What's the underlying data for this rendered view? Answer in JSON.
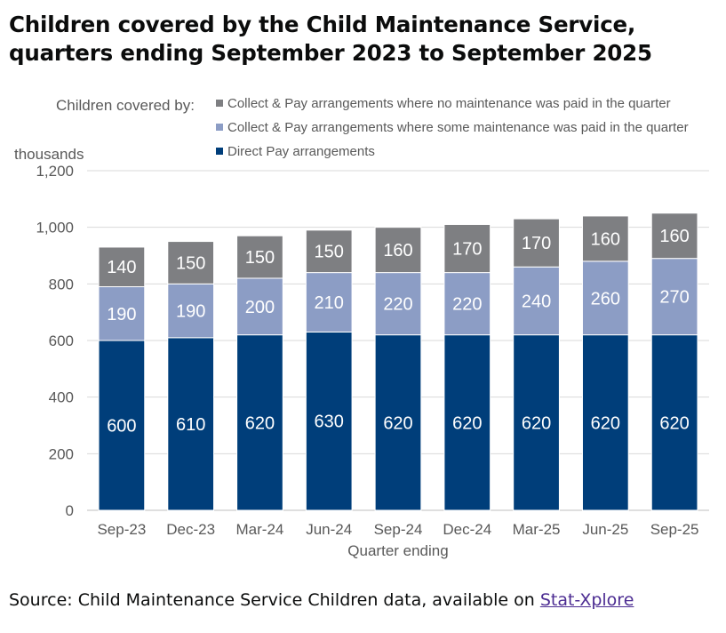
{
  "title": {
    "line1": "Children covered by the Child Maintenance Service,",
    "line2": "quarters ending September 2023 to September 2025"
  },
  "source": {
    "text": "Source: Child Maintenance Service Children data, available on",
    "link_label": "Stat-Xplore"
  },
  "colors": {
    "direct_pay": "#003e7a",
    "some_paid": "#8c9dc5",
    "none_paid": "#7e7f82",
    "grid": "#d9d9d9",
    "axis_text": "#595959"
  },
  "chart_data": {
    "type": "bar",
    "stacked": true,
    "categories": [
      "Sep-23",
      "Dec-23",
      "Mar-24",
      "Jun-24",
      "Sep-24",
      "Dec-24",
      "Mar-25",
      "Jun-25",
      "Sep-25"
    ],
    "series": [
      {
        "name": "Direct Pay arrangements",
        "key": "direct_pay",
        "values": [
          600,
          610,
          620,
          630,
          620,
          620,
          620,
          620,
          620
        ]
      },
      {
        "name": "Collect & Pay arrangements where some maintenance was paid in the quarter",
        "key": "some_paid",
        "values": [
          190,
          190,
          200,
          210,
          220,
          220,
          240,
          260,
          270
        ]
      },
      {
        "name": "Collect & Pay arrangements where no maintenance was paid in the quarter",
        "key": "none_paid",
        "values": [
          140,
          150,
          150,
          150,
          160,
          170,
          170,
          160,
          160
        ]
      }
    ],
    "legend_title": "Children covered by:",
    "legend_order": [
      "none_paid",
      "some_paid",
      "direct_pay"
    ],
    "xlabel": "Quarter ending",
    "ylabel": "thousands",
    "ylim": [
      0,
      1200
    ],
    "yticks": [
      0,
      200,
      400,
      600,
      800,
      1000,
      1200
    ],
    "ytick_labels": [
      "0",
      "200",
      "400",
      "600",
      "800",
      "1,000",
      "1,200"
    ],
    "grid": true
  }
}
